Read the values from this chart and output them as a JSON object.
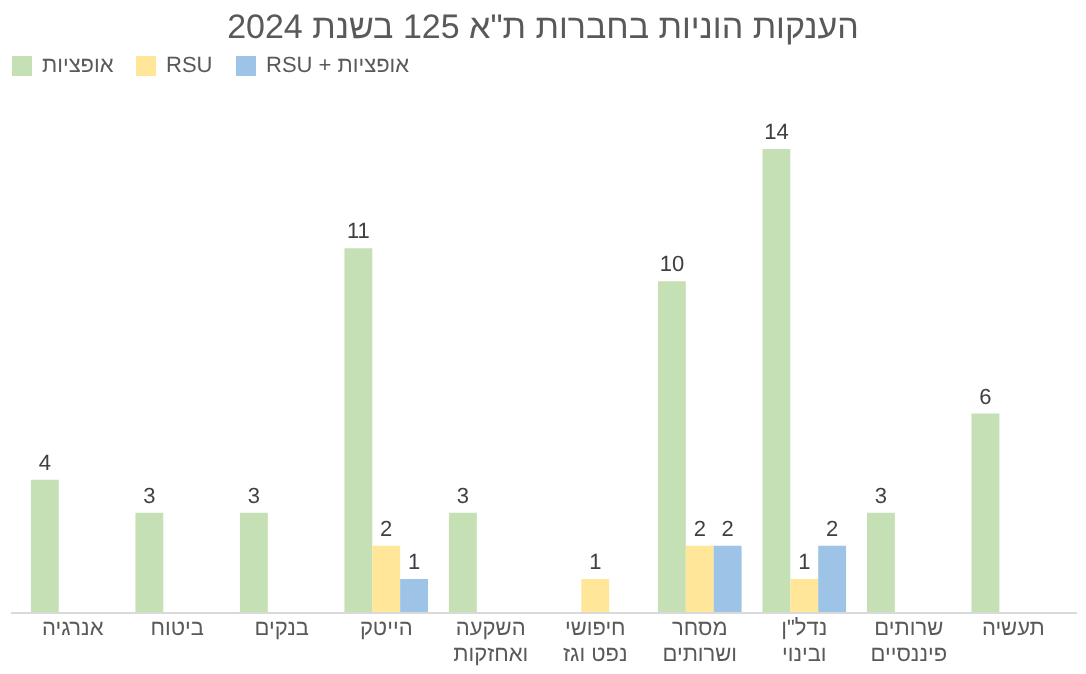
{
  "chart_data": {
    "type": "bar",
    "title": "הענקות הוניות בחברות ת\"א 125 בשנת 2024",
    "categories": [
      "אנרגיה",
      "ביטוח",
      "בנקים",
      "הייטק",
      "השקעה ואחזקות",
      "חיפושי נפט וגז",
      "מסחר ושרותים",
      "נדל\"ן ובינוי",
      "שרותים פיננסיים",
      "תעשיה"
    ],
    "series": [
      {
        "name": "אופציות",
        "color": "#c5e0b4",
        "values": [
          4,
          3,
          3,
          11,
          3,
          null,
          10,
          14,
          3,
          6
        ]
      },
      {
        "name": "RSU",
        "color": "#ffe699",
        "values": [
          null,
          null,
          null,
          2,
          null,
          1,
          2,
          1,
          null,
          null
        ]
      },
      {
        "name": "RSU + אופציות",
        "color": "#9dc3e6",
        "values": [
          null,
          null,
          null,
          1,
          null,
          null,
          2,
          2,
          null,
          null
        ]
      }
    ],
    "data_labels": true,
    "legend": "top",
    "grid": false
  }
}
